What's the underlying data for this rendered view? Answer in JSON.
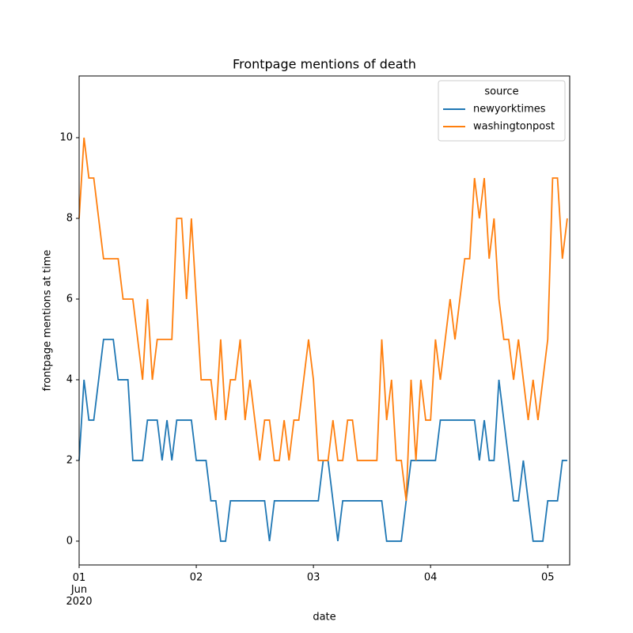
{
  "chart_data": {
    "type": "line",
    "title": "Frontpage mentions of death",
    "x_label": "date",
    "y_label": "frontpage mentions at time",
    "legend_title": "source",
    "legend_position": "upper right",
    "x": [
      0,
      1,
      2,
      3,
      4,
      5,
      6,
      7,
      8,
      9,
      10,
      11,
      12,
      13,
      14,
      15,
      16,
      17,
      18,
      19,
      20,
      21,
      22,
      23,
      24,
      25,
      26,
      27,
      28,
      29,
      30,
      31,
      32,
      33,
      34,
      35,
      36,
      37,
      38,
      39,
      40,
      41,
      42,
      43,
      44,
      45,
      46,
      47,
      48,
      49,
      50,
      51,
      52,
      53,
      54,
      55,
      56,
      57,
      58,
      59,
      60,
      61,
      62,
      63,
      64,
      65,
      66,
      67,
      68,
      69,
      70,
      71,
      72,
      73,
      74,
      75,
      76,
      77,
      78,
      79,
      80,
      81,
      82,
      83,
      84,
      85,
      86,
      87,
      88,
      89,
      90,
      91,
      92,
      93,
      94,
      95,
      96,
      97,
      98,
      99,
      100
    ],
    "series": [
      {
        "name": "newyorktimes",
        "color": "#1f77b4",
        "values": [
          2,
          4,
          3,
          3,
          4,
          5,
          5,
          5,
          4,
          4,
          4,
          2,
          2,
          2,
          3,
          3,
          3,
          2,
          3,
          2,
          3,
          3,
          3,
          3,
          2,
          2,
          2,
          1,
          1,
          0,
          0,
          1,
          1,
          1,
          1,
          1,
          1,
          1,
          1,
          0,
          1,
          1,
          1,
          1,
          1,
          1,
          1,
          1,
          1,
          1,
          2,
          2,
          1,
          0,
          1,
          1,
          1,
          1,
          1,
          1,
          1,
          1,
          1,
          0,
          0,
          0,
          0,
          1,
          2,
          2,
          2,
          2,
          2,
          2,
          3,
          3,
          3,
          3,
          3,
          3,
          3,
          3,
          2,
          3,
          2,
          2,
          4,
          3,
          2,
          1,
          1,
          2,
          1,
          0,
          0,
          0,
          1,
          1,
          1,
          2,
          2
        ]
      },
      {
        "name": "washingtonpost",
        "color": "#ff7f0e",
        "values": [
          8,
          10,
          9,
          9,
          8,
          7,
          7,
          7,
          7,
          6,
          6,
          6,
          5,
          4,
          6,
          4,
          5,
          5,
          5,
          5,
          8,
          8,
          6,
          8,
          6,
          4,
          4,
          4,
          3,
          5,
          3,
          4,
          4,
          5,
          3,
          4,
          3,
          2,
          3,
          3,
          2,
          2,
          3,
          2,
          3,
          3,
          4,
          5,
          4,
          2,
          2,
          2,
          3,
          2,
          2,
          3,
          3,
          2,
          2,
          2,
          2,
          2,
          5,
          3,
          4,
          2,
          2,
          1,
          4,
          2,
          4,
          3,
          3,
          5,
          4,
          5,
          6,
          5,
          6,
          7,
          7,
          9,
          8,
          9,
          7,
          8,
          6,
          5,
          5,
          4,
          5,
          4,
          3,
          4,
          3,
          4,
          5,
          9,
          9,
          7,
          8
        ]
      }
    ],
    "xlim": [
      0,
      100.5
    ],
    "xticks": [
      {
        "value": 0,
        "label": "01\nJun\n2020"
      },
      {
        "value": 24,
        "label": "02"
      },
      {
        "value": 48,
        "label": "03"
      },
      {
        "value": 72,
        "label": "04"
      },
      {
        "value": 96,
        "label": "05"
      }
    ],
    "ylim": [
      -0.59,
      11.53
    ],
    "yticks": [
      0,
      2,
      4,
      6,
      8,
      10
    ],
    "grid": false
  }
}
